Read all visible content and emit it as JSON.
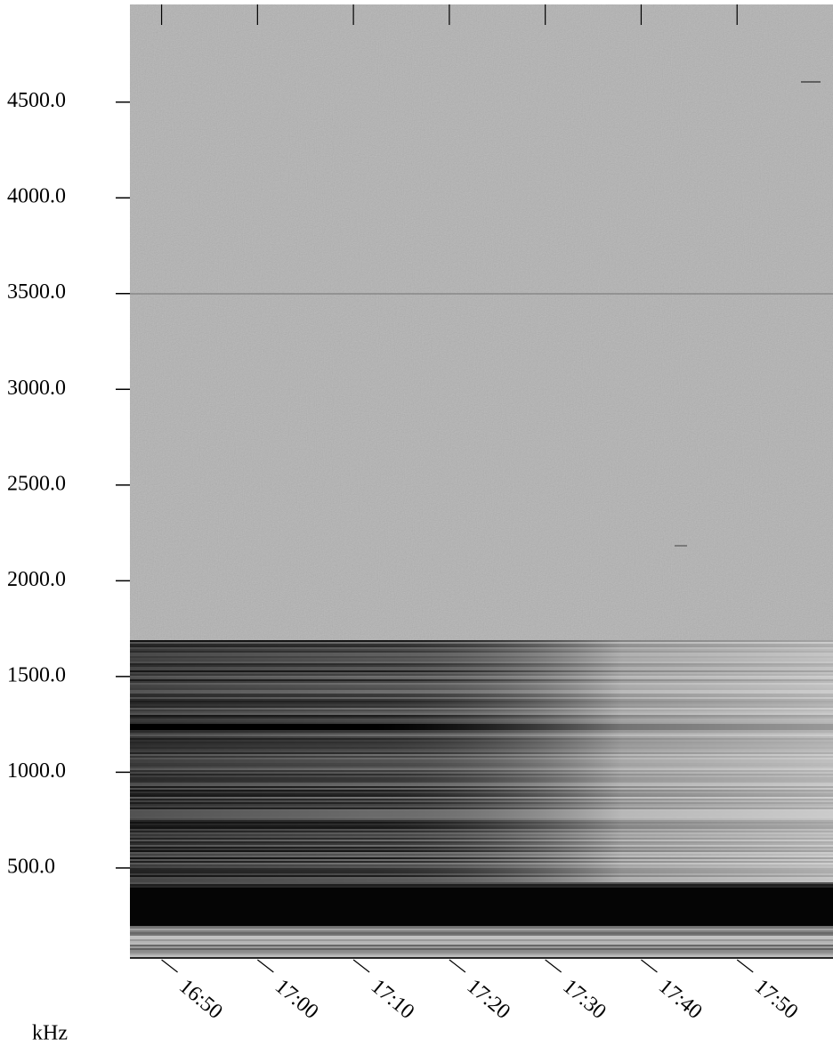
{
  "chart_data": {
    "type": "spectrogram",
    "ylabel": "kHz",
    "ylim": [
      30,
      5010
    ],
    "yticks": [
      {
        "value": 500,
        "label": "500.0"
      },
      {
        "value": 1000,
        "label": "1000.0"
      },
      {
        "value": 1500,
        "label": "1500.0"
      },
      {
        "value": 2000,
        "label": "2000.0"
      },
      {
        "value": 2500,
        "label": "2500.0"
      },
      {
        "value": 3000,
        "label": "3000.0"
      },
      {
        "value": 3500,
        "label": "3500.0"
      },
      {
        "value": 4000,
        "label": "4000.0"
      },
      {
        "value": 4500,
        "label": "4500.0"
      }
    ],
    "xlim": [
      1006.7,
      1080
    ],
    "xticks": [
      {
        "value": 1010,
        "label": "16:50"
      },
      {
        "value": 1020,
        "label": "17:00"
      },
      {
        "value": 1030,
        "label": "17:10"
      },
      {
        "value": 1040,
        "label": "17:20"
      },
      {
        "value": 1050,
        "label": "17:30"
      },
      {
        "value": 1060,
        "label": "17:40"
      },
      {
        "value": 1070,
        "label": "17:50"
      }
    ]
  }
}
